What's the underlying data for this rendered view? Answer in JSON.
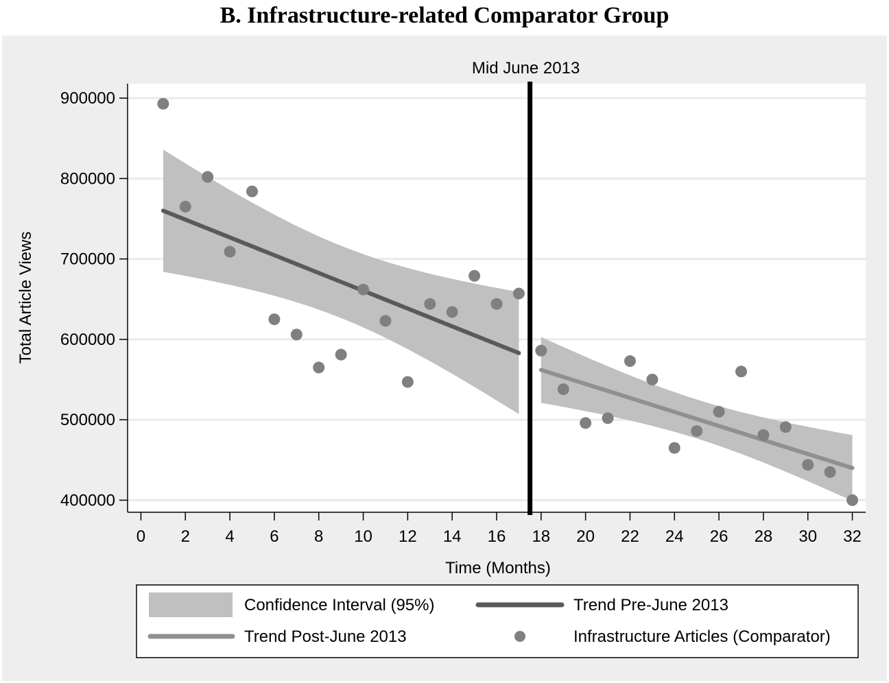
{
  "chart_data": {
    "type": "scatter",
    "title": "B. Infrastructure-related Comparator Group",
    "xlabel": "Time (Months)",
    "ylabel": "Total Article Views",
    "xlim": [
      -0.6,
      32.6
    ],
    "ylim": [
      385000,
      918000
    ],
    "x_ticks": [
      0,
      2,
      4,
      6,
      8,
      10,
      12,
      14,
      16,
      18,
      20,
      22,
      24,
      26,
      28,
      30,
      32
    ],
    "y_ticks": [
      400000,
      500000,
      600000,
      700000,
      800000,
      900000
    ],
    "grid": "horizontal",
    "legend_position": "bottom",
    "break": {
      "x": 17.5,
      "label": "Mid June 2013"
    },
    "points": {
      "name": "Infrastructure Articles (Comparator)",
      "color": "#808080",
      "x": [
        1,
        2,
        3,
        4,
        5,
        6,
        7,
        8,
        9,
        10,
        11,
        12,
        13,
        14,
        15,
        16,
        17,
        18,
        19,
        20,
        21,
        22,
        23,
        24,
        25,
        26,
        27,
        28,
        29,
        30,
        31,
        32
      ],
      "y": [
        893000,
        765000,
        802000,
        709000,
        784000,
        625000,
        606000,
        565000,
        581000,
        662000,
        623000,
        547000,
        644000,
        634000,
        679000,
        644000,
        657000,
        586000,
        538000,
        496000,
        502000,
        573000,
        550000,
        465000,
        486000,
        510000,
        560000,
        481000,
        491000,
        444000,
        435000,
        400000
      ]
    },
    "trend_pre": {
      "name": "Trend Pre-June 2013",
      "color": "#5a5a5a",
      "x": [
        1,
        17
      ],
      "y": [
        760000,
        583000
      ],
      "ci_upper": [
        836000,
        659000
      ],
      "ci_lower": [
        684000,
        509000
      ]
    },
    "trend_post": {
      "name": "Trend Post-June 2013",
      "color": "#909090",
      "x": [
        18,
        32
      ],
      "y": [
        562000,
        440000
      ],
      "ci_upper": [
        603000,
        481000
      ],
      "ci_lower": [
        521000,
        401000
      ]
    },
    "ci": {
      "name": "Confidence Interval (95%)",
      "color": "#c0c0c0"
    }
  }
}
